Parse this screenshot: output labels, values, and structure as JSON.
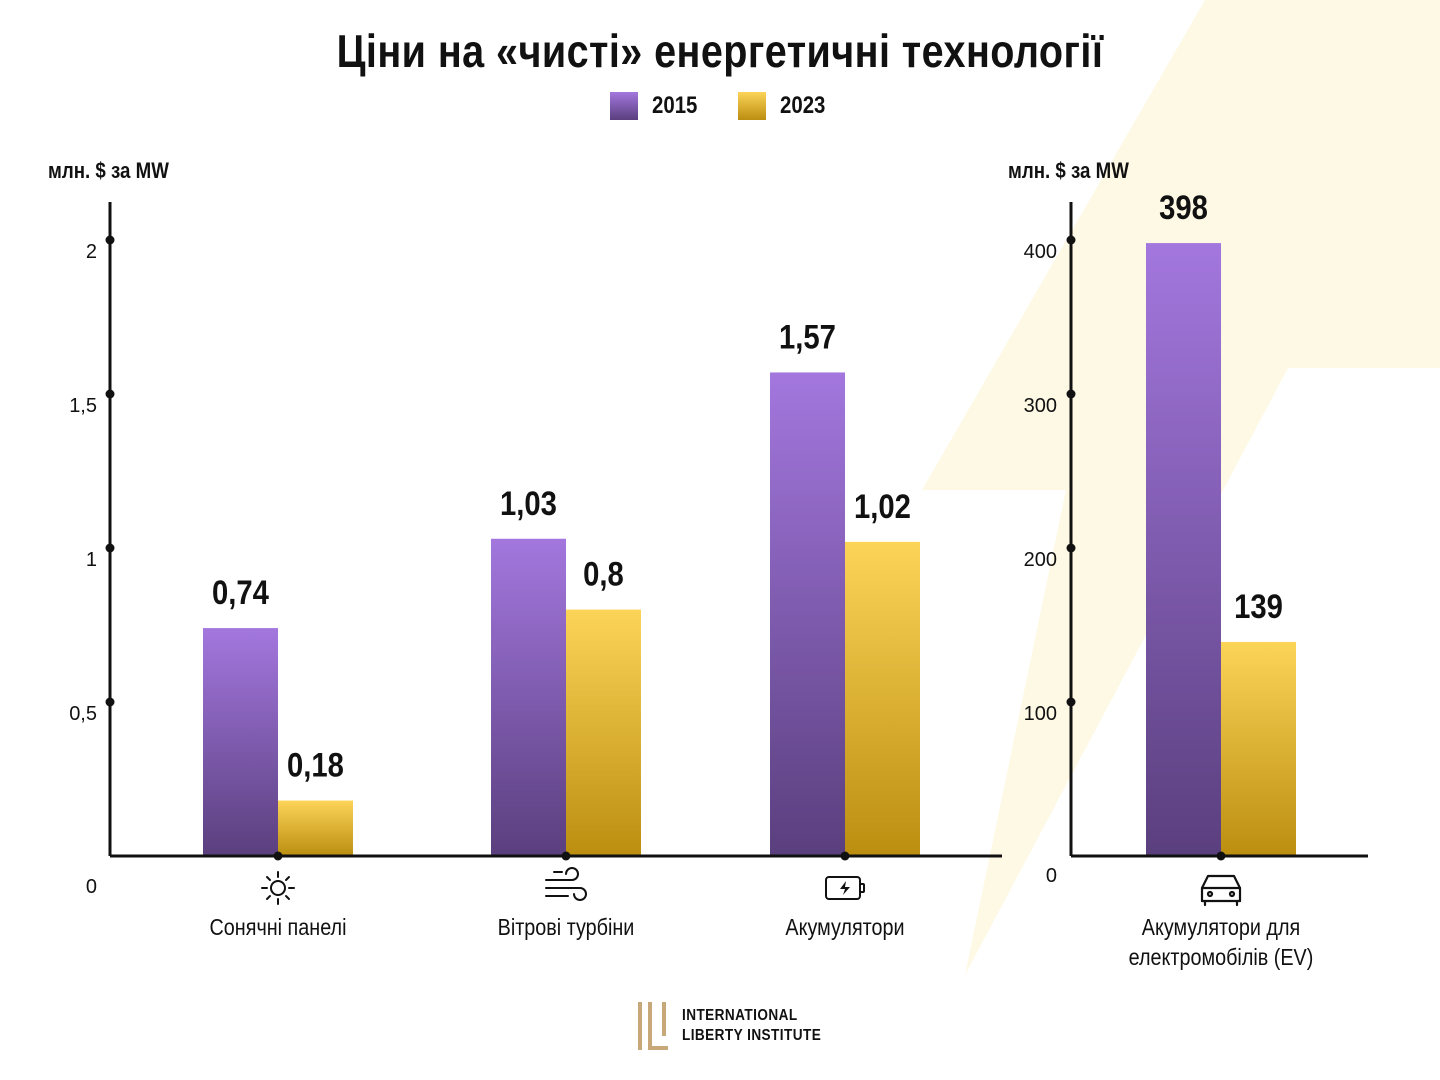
{
  "title": "Ціни на «чисті» енергетичні технології",
  "colors": {
    "series_2015_top": "#a377de",
    "series_2015_bottom": "#5a3f7e",
    "series_2023_top": "#fcd458",
    "series_2023_bottom": "#bb8e10",
    "background_accent": "#fdf9e4"
  },
  "legend": [
    {
      "label": "2015"
    },
    {
      "label": "2023"
    }
  ],
  "categories": [
    {
      "label": "Сонячні панелі",
      "icon": "sun-icon"
    },
    {
      "label": "Вітрові турбіни",
      "icon": "wind-icon"
    },
    {
      "label": "Акумулятори",
      "icon": "battery-icon"
    },
    {
      "label": "Акумулятори для електромобілів (EV)",
      "icon": "car-icon"
    }
  ],
  "chart_data": [
    {
      "type": "bar",
      "ylabel": "млн. $ за MW",
      "ylim": [
        0,
        2
      ],
      "yticks": [
        "0",
        "0,5",
        "1",
        "1,5",
        "2"
      ],
      "categories": [
        "Сонячні панелі",
        "Вітрові турбіни",
        "Акумулятори"
      ],
      "series": [
        {
          "name": "2015",
          "values": [
            0.74,
            1.03,
            1.57
          ],
          "labels": [
            "0,74",
            "1,03",
            "1,57"
          ]
        },
        {
          "name": "2023",
          "values": [
            0.18,
            0.8,
            1.02
          ],
          "labels": [
            "0,18",
            "0,8",
            "1,02"
          ]
        }
      ]
    },
    {
      "type": "bar",
      "ylabel": "млн. $ за MW",
      "ylim": [
        0,
        400
      ],
      "yticks": [
        "0",
        "100",
        "200",
        "300",
        "400"
      ],
      "categories": [
        "Акумулятори для електромобілів (EV)"
      ],
      "series": [
        {
          "name": "2015",
          "values": [
            398
          ],
          "labels": [
            "398"
          ]
        },
        {
          "name": "2023",
          "values": [
            139
          ],
          "labels": [
            "139"
          ]
        }
      ]
    }
  ],
  "logo": {
    "line1": "International",
    "line2": "Liberty Institute"
  }
}
